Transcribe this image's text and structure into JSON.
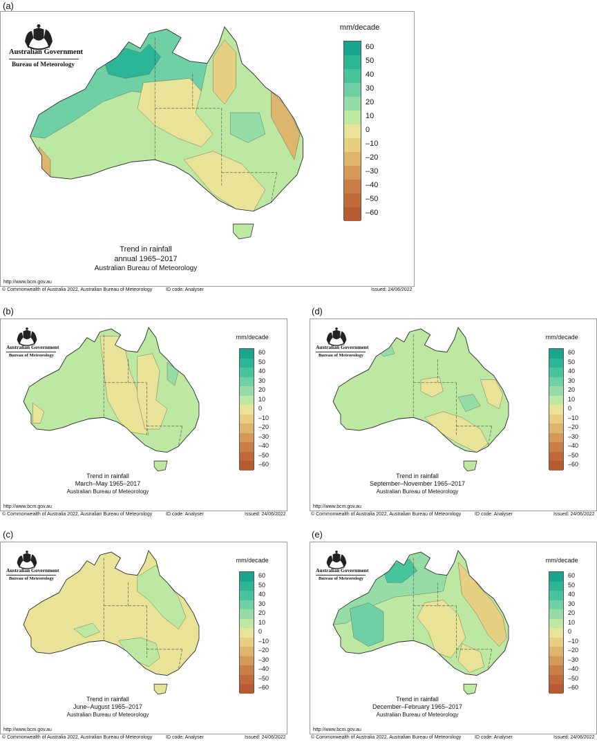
{
  "legend": {
    "unit": "mm/decade",
    "ticks": [
      "60",
      "50",
      "40",
      "30",
      "20",
      "10",
      "0",
      "–10",
      "–20",
      "–30",
      "–40",
      "–50",
      "–60"
    ],
    "colors": [
      "#1aa58f",
      "#2bb796",
      "#48c49c",
      "#6ed0a4",
      "#96dca6",
      "#bde8a2",
      "#e9e397",
      "#e6cf80",
      "#deb56c",
      "#d59858",
      "#cc7e48",
      "#c06a3c",
      "#b65a32"
    ]
  },
  "logo": {
    "government": "Australian Government",
    "bureau": "Bureau of Meteorology"
  },
  "footer": {
    "copyright": "© Commonwealth of Australia 2022, Australian Bureau of Meteorology",
    "id_code": "ID code: Analyser",
    "issued": "Issued: 24/06/2022",
    "url": "http://www.bcm.gov.au"
  },
  "panels": [
    {
      "letter": "(a)",
      "title": "Trend in rainfall",
      "period": "annual 1965–2017",
      "source": "Australian Bureau of Meteorology"
    },
    {
      "letter": "(b)",
      "title": "Trend in rainfall",
      "period": "March–May 1965–2017",
      "source": "Australian Bureau of Meteorology"
    },
    {
      "letter": "(d)",
      "title": "Trend in rainfall",
      "period": "September–November 1965–2017",
      "source": "Australian Bureau of Meteorology"
    },
    {
      "letter": "(c)",
      "title": "Trend in rainfall",
      "period": "June–August 1965–2017",
      "source": "Australian Bureau of Meteorology"
    },
    {
      "letter": "(e)",
      "title": "Trend in rainfall",
      "period": "December–February 1965–2017",
      "source": "Australian Bureau of Meteorology"
    }
  ]
}
